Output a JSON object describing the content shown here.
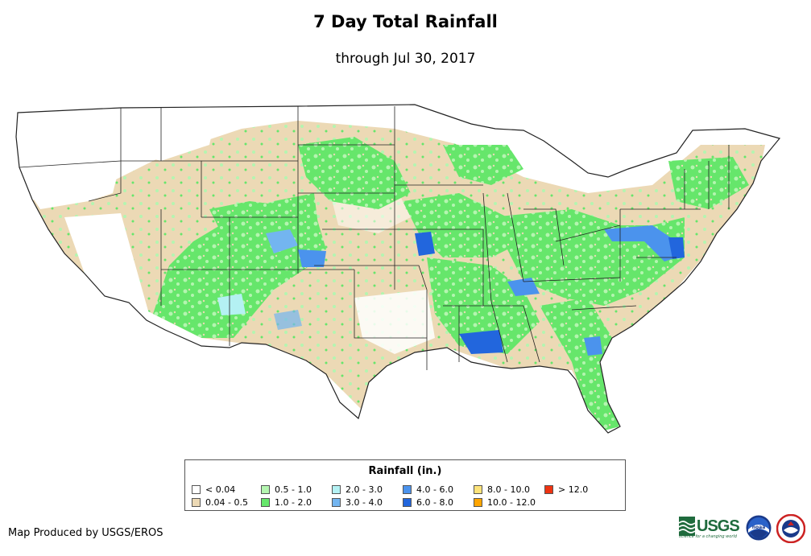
{
  "title": "7 Day Total Rainfall",
  "subtitle": "through Jul 30, 2017",
  "legend": {
    "title": "Rainfall (in.)",
    "items": [
      {
        "label": "< 0.04",
        "color": "#ffffff"
      },
      {
        "label": "0.04 - 0.5",
        "color": "#ecd9b5"
      },
      {
        "label": "0.5 - 1.0",
        "color": "#b4f5b0"
      },
      {
        "label": "1.0 - 2.0",
        "color": "#66e66b"
      },
      {
        "label": "2.0 - 3.0",
        "color": "#b4f1f3"
      },
      {
        "label": "3.0 - 4.0",
        "color": "#73b5f0"
      },
      {
        "label": "4.0 - 6.0",
        "color": "#4b93ed"
      },
      {
        "label": "6.0 - 8.0",
        "color": "#2266dd"
      },
      {
        "label": "8.0 - 10.0",
        "color": "#fde37a"
      },
      {
        "label": "10.0 - 12.0",
        "color": "#ffa500"
      },
      {
        "label": "> 12.0",
        "color": "#ee3311"
      }
    ]
  },
  "credit": "Map Produced by USGS/EROS",
  "logos": {
    "usgs": "USGS",
    "usgs_tagline": "science for a changing world",
    "noaa": "noaa"
  },
  "map": {
    "base_color": "#ffffff",
    "border_color": "#222222"
  }
}
